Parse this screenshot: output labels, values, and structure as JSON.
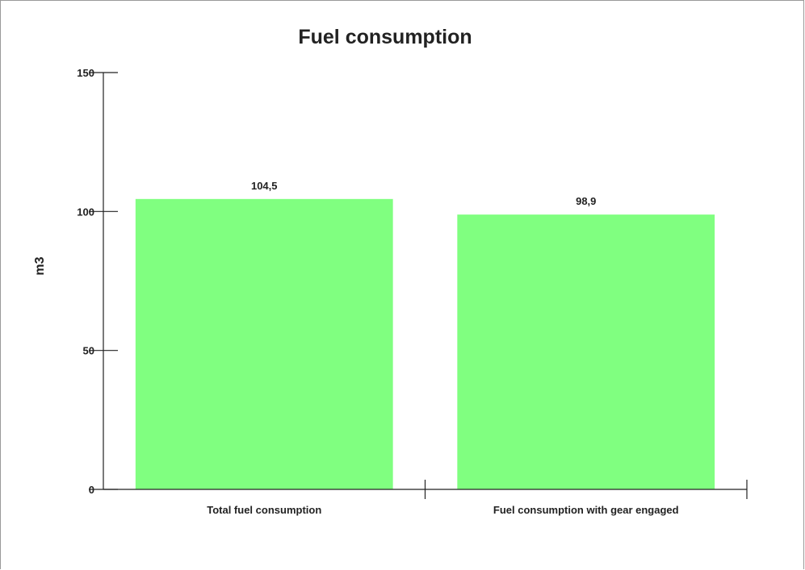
{
  "chart_data": {
    "type": "bar",
    "title": "Fuel consumption",
    "xlabel": "",
    "ylabel": "m3",
    "ylim": [
      0,
      150
    ],
    "yticks": [
      0,
      50,
      100,
      150
    ],
    "categories": [
      "Total fuel consumption",
      "Fuel consumption with gear engaged"
    ],
    "values": [
      104.5,
      98.9
    ],
    "value_labels": [
      "104,5",
      "98,9"
    ],
    "bar_color": "#80ff80",
    "grid": false
  }
}
